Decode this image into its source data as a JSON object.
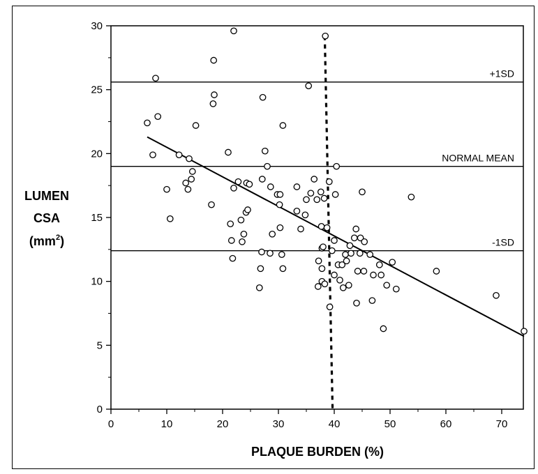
{
  "chart_data": {
    "type": "scatter",
    "xlabel": "PLAQUE BURDEN (%)",
    "ylabel": {
      "line1": "LUMEN",
      "line2": "CSA",
      "line3_prefix": "(mm",
      "line3_sup": "2",
      "line3_suffix": ")"
    },
    "xlim": [
      0,
      75
    ],
    "ylim": [
      0,
      30
    ],
    "x_ticks": [
      0,
      10,
      20,
      30,
      40,
      50,
      60,
      70
    ],
    "y_ticks": [
      0,
      5,
      10,
      15,
      20,
      25,
      30
    ],
    "reference_lines": [
      {
        "label": "+1SD",
        "y": 25.6
      },
      {
        "label": "NORMAL  MEAN",
        "y": 19.0
      },
      {
        "label": "-1SD",
        "y": 12.4
      }
    ],
    "regression_line": {
      "x": [
        6.5,
        74
      ],
      "y": [
        21.3,
        5.7
      ]
    },
    "threshold_line": {
      "style": "dotted",
      "x": [
        38.3,
        39.7
      ],
      "y": [
        29.2,
        0
      ]
    },
    "points": [
      [
        6.5,
        22.4
      ],
      [
        7.5,
        19.9
      ],
      [
        8.0,
        25.9
      ],
      [
        8.4,
        22.9
      ],
      [
        10.0,
        17.2
      ],
      [
        10.6,
        14.9
      ],
      [
        12.2,
        19.9
      ],
      [
        13.4,
        17.7
      ],
      [
        13.8,
        17.2
      ],
      [
        14.0,
        19.6
      ],
      [
        14.4,
        18.0
      ],
      [
        14.6,
        18.6
      ],
      [
        15.2,
        22.2
      ],
      [
        18.0,
        16.0
      ],
      [
        18.3,
        23.9
      ],
      [
        18.4,
        27.3
      ],
      [
        18.5,
        24.6
      ],
      [
        21.0,
        20.1
      ],
      [
        21.4,
        14.5
      ],
      [
        21.6,
        13.2
      ],
      [
        21.8,
        11.8
      ],
      [
        22.0,
        17.3
      ],
      [
        22.0,
        29.6
      ],
      [
        22.8,
        17.8
      ],
      [
        23.3,
        14.8
      ],
      [
        23.5,
        13.1
      ],
      [
        23.8,
        13.7
      ],
      [
        24.2,
        15.4
      ],
      [
        24.3,
        17.7
      ],
      [
        24.5,
        15.6
      ],
      [
        24.8,
        17.6
      ],
      [
        26.6,
        9.5
      ],
      [
        26.8,
        11.0
      ],
      [
        27.0,
        12.3
      ],
      [
        27.1,
        18.0
      ],
      [
        27.2,
        24.4
      ],
      [
        27.6,
        20.2
      ],
      [
        28.0,
        19.0
      ],
      [
        28.5,
        12.2
      ],
      [
        28.6,
        17.4
      ],
      [
        28.9,
        13.7
      ],
      [
        29.8,
        16.8
      ],
      [
        30.2,
        16.0
      ],
      [
        30.3,
        14.2
      ],
      [
        30.3,
        16.8
      ],
      [
        30.6,
        12.1
      ],
      [
        30.8,
        22.2
      ],
      [
        30.8,
        11.0
      ],
      [
        33.3,
        17.4
      ],
      [
        33.3,
        15.5
      ],
      [
        34.0,
        14.1
      ],
      [
        34.8,
        15.2
      ],
      [
        35.0,
        16.4
      ],
      [
        35.4,
        25.3
      ],
      [
        35.8,
        16.9
      ],
      [
        36.4,
        18.0
      ],
      [
        36.9,
        16.4
      ],
      [
        37.1,
        9.6
      ],
      [
        37.2,
        11.6
      ],
      [
        37.6,
        17.0
      ],
      [
        37.7,
        14.3
      ],
      [
        37.8,
        11.0
      ],
      [
        37.8,
        12.6
      ],
      [
        37.8,
        10.0
      ],
      [
        38.0,
        12.7
      ],
      [
        38.2,
        16.5
      ],
      [
        38.3,
        9.8
      ],
      [
        38.4,
        29.2
      ],
      [
        38.7,
        14.2
      ],
      [
        39.1,
        17.8
      ],
      [
        39.2,
        8.0
      ],
      [
        39.6,
        12.4
      ],
      [
        40.0,
        13.2
      ],
      [
        40.0,
        10.5
      ],
      [
        40.2,
        16.8
      ],
      [
        40.4,
        19.0
      ],
      [
        40.7,
        11.3
      ],
      [
        41.0,
        10.1
      ],
      [
        41.4,
        11.3
      ],
      [
        41.6,
        9.5
      ],
      [
        42.0,
        12.1
      ],
      [
        42.2,
        11.6
      ],
      [
        42.6,
        9.7
      ],
      [
        42.8,
        12.8
      ],
      [
        43.0,
        12.2
      ],
      [
        43.6,
        13.4
      ],
      [
        43.9,
        14.1
      ],
      [
        44.0,
        8.3
      ],
      [
        44.2,
        10.8
      ],
      [
        44.6,
        12.2
      ],
      [
        44.7,
        13.4
      ],
      [
        45.0,
        17.0
      ],
      [
        45.3,
        10.8
      ],
      [
        45.4,
        13.1
      ],
      [
        46.4,
        12.1
      ],
      [
        46.8,
        8.5
      ],
      [
        47.0,
        10.5
      ],
      [
        48.1,
        11.3
      ],
      [
        48.4,
        10.5
      ],
      [
        48.8,
        6.3
      ],
      [
        49.4,
        9.7
      ],
      [
        50.4,
        11.5
      ],
      [
        51.1,
        9.4
      ],
      [
        53.8,
        16.6
      ],
      [
        58.3,
        10.8
      ],
      [
        69.0,
        8.9
      ],
      [
        74.0,
        6.1
      ]
    ]
  }
}
